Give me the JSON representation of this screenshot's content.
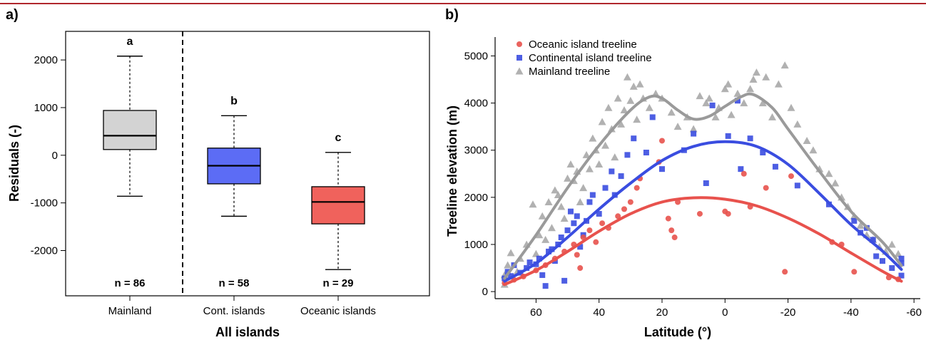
{
  "header": {
    "rule_color": "#b0272d"
  },
  "chart_data": [
    {
      "panel": "a)",
      "type": "box",
      "title": "",
      "xlabel": "All islands",
      "ylabel": "Residuals (-)",
      "ylim": [
        -2950,
        2600
      ],
      "yticks": [
        2000,
        1000,
        0,
        -1000,
        -2000
      ],
      "ytick_labels": [
        "2000",
        "1000",
        "0",
        "-1000",
        "-2000"
      ],
      "separator": "dashed vertical line between Mainland and islands",
      "categories": [
        "Mainland",
        "Cont. islands",
        "Oceanic islands"
      ],
      "boxes": [
        {
          "category": "Mainland",
          "whisker_low": -860,
          "q1": 120,
          "median": 410,
          "q3": 940,
          "whisker_high": 2080,
          "color": "#d3d3d3",
          "letter": "a",
          "n_label": "n = 86"
        },
        {
          "category": "Cont. islands",
          "whisker_low": -1280,
          "q1": -600,
          "median": -220,
          "q3": 150,
          "whisker_high": 830,
          "color": "#5c6cf5",
          "letter": "b",
          "n_label": "n = 58"
        },
        {
          "category": "Oceanic islands",
          "whisker_low": -2400,
          "q1": -1440,
          "median": -980,
          "q3": -660,
          "whisker_high": 60,
          "color": "#f0625c",
          "letter": "c",
          "n_label": "n = 29"
        }
      ]
    },
    {
      "panel": "b)",
      "type": "scatter",
      "title": "",
      "xlabel": "Latitude (°)",
      "ylabel": "Treeline elevation (m)",
      "xlim": [
        73,
        -62
      ],
      "ylim": [
        -150,
        5400
      ],
      "xticks": [
        60,
        40,
        20,
        0,
        -20,
        -40,
        -60
      ],
      "xtick_labels": [
        "60",
        "40",
        "20",
        "0",
        "-20",
        "-40",
        "-60"
      ],
      "yticks": [
        0,
        1000,
        2000,
        3000,
        4000,
        5000
      ],
      "ytick_labels": [
        "0",
        "1000",
        "2000",
        "3000",
        "4000",
        "5000"
      ],
      "legend_position": "top-left",
      "grid": false,
      "series": [
        {
          "name": "Oceanic island treeline",
          "marker": "circle",
          "color": "#e8524d",
          "points": [
            [
              70,
              180
            ],
            [
              67,
              250
            ],
            [
              64,
              320
            ],
            [
              60,
              450
            ],
            [
              57,
              560
            ],
            [
              54,
              700
            ],
            [
              51,
              850
            ],
            [
              48,
              1000
            ],
            [
              47,
              780
            ],
            [
              46,
              500
            ],
            [
              45,
              1150
            ],
            [
              43,
              1300
            ],
            [
              41,
              1050
            ],
            [
              39,
              1450
            ],
            [
              37,
              1350
            ],
            [
              34,
              1600
            ],
            [
              32,
              1750
            ],
            [
              30,
              1900
            ],
            [
              28,
              2200
            ],
            [
              27,
              2400
            ],
            [
              21,
              2750
            ],
            [
              20,
              3200
            ],
            [
              18,
              1550
            ],
            [
              17,
              1300
            ],
            [
              16,
              1150
            ],
            [
              15,
              1900
            ],
            [
              8,
              1650
            ],
            [
              0,
              1700
            ],
            [
              -1,
              1650
            ],
            [
              -6,
              2500
            ],
            [
              -8,
              1800
            ],
            [
              -13,
              2200
            ],
            [
              -19,
              420
            ],
            [
              -21,
              2450
            ],
            [
              -34,
              1050
            ],
            [
              -37,
              1000
            ],
            [
              -41,
              420
            ],
            [
              -52,
              300
            ],
            [
              -55,
              260
            ]
          ]
        },
        {
          "name": "Continental island treeline",
          "marker": "square",
          "color": "#3a4de0",
          "points": [
            [
              70,
              280
            ],
            [
              69,
              420
            ],
            [
              68,
              330
            ],
            [
              67,
              560
            ],
            [
              65,
              400
            ],
            [
              63,
              500
            ],
            [
              62,
              620
            ],
            [
              60,
              580
            ],
            [
              59,
              700
            ],
            [
              58,
              350
            ],
            [
              57,
              120
            ],
            [
              56,
              850
            ],
            [
              55,
              900
            ],
            [
              54,
              650
            ],
            [
              53,
              1000
            ],
            [
              52,
              1150
            ],
            [
              51,
              230
            ],
            [
              50,
              1300
            ],
            [
              49,
              1700
            ],
            [
              48,
              1450
            ],
            [
              47,
              1600
            ],
            [
              46,
              950
            ],
            [
              45,
              1200
            ],
            [
              44,
              1500
            ],
            [
              43,
              1900
            ],
            [
              42,
              2050
            ],
            [
              40,
              1650
            ],
            [
              38,
              2200
            ],
            [
              36,
              2550
            ],
            [
              35,
              2050
            ],
            [
              33,
              2450
            ],
            [
              31,
              2900
            ],
            [
              29,
              3250
            ],
            [
              25,
              2950
            ],
            [
              23,
              3700
            ],
            [
              20,
              2600
            ],
            [
              13,
              3000
            ],
            [
              10,
              3350
            ],
            [
              6,
              2300
            ],
            [
              4,
              3950
            ],
            [
              -1,
              3300
            ],
            [
              -4,
              4050
            ],
            [
              -5,
              2600
            ],
            [
              -8,
              3250
            ],
            [
              -12,
              2950
            ],
            [
              -16,
              2650
            ],
            [
              -23,
              2250
            ],
            [
              -33,
              1850
            ],
            [
              -41,
              1500
            ],
            [
              -43,
              1250
            ],
            [
              -45,
              1350
            ],
            [
              -47,
              1100
            ],
            [
              -48,
              750
            ],
            [
              -50,
              650
            ],
            [
              -53,
              500
            ],
            [
              -56,
              340
            ],
            [
              -56,
              600
            ],
            [
              -56,
              700
            ]
          ]
        },
        {
          "name": "Mainland treeline",
          "marker": "triangle",
          "color": "#a8a8a8",
          "points": [
            [
              70,
              150
            ],
            [
              70,
              350
            ],
            [
              69,
              560
            ],
            [
              68,
              820
            ],
            [
              66,
              420
            ],
            [
              65,
              700
            ],
            [
              63,
              1000
            ],
            [
              61,
              1850
            ],
            [
              60,
              800
            ],
            [
              59,
              1200
            ],
            [
              58,
              1600
            ],
            [
              57,
              1100
            ],
            [
              56,
              1900
            ],
            [
              55,
              1350
            ],
            [
              54,
              2150
            ],
            [
              53,
              2050
            ],
            [
              52,
              1800
            ],
            [
              51,
              1550
            ],
            [
              50,
              2400
            ],
            [
              49,
              2700
            ],
            [
              48,
              2350
            ],
            [
              47,
              2550
            ],
            [
              46,
              1900
            ],
            [
              45,
              2200
            ],
            [
              44,
              2900
            ],
            [
              43,
              2600
            ],
            [
              42,
              3250
            ],
            [
              41,
              3000
            ],
            [
              40,
              2700
            ],
            [
              39,
              3600
            ],
            [
              38,
              3100
            ],
            [
              37,
              3900
            ],
            [
              36,
              3450
            ],
            [
              35,
              2850
            ],
            [
              34,
              4100
            ],
            [
              33,
              3550
            ],
            [
              32,
              3850
            ],
            [
              31,
              4550
            ],
            [
              30,
              4050
            ],
            [
              29,
              4350
            ],
            [
              28,
              3650
            ],
            [
              27,
              4400
            ],
            [
              26,
              4100
            ],
            [
              24,
              3900
            ],
            [
              22,
              4200
            ],
            [
              20,
              4100
            ],
            [
              17,
              3800
            ],
            [
              15,
              3500
            ],
            [
              12,
              3700
            ],
            [
              10,
              3450
            ],
            [
              8,
              4150
            ],
            [
              6,
              4000
            ],
            [
              5,
              4100
            ],
            [
              3,
              3700
            ],
            [
              2,
              3900
            ],
            [
              0,
              4300
            ],
            [
              -1,
              4400
            ],
            [
              -2,
              3750
            ],
            [
              -4,
              4200
            ],
            [
              -6,
              4000
            ],
            [
              -8,
              4300
            ],
            [
              -9,
              4500
            ],
            [
              -10,
              4650
            ],
            [
              -12,
              4000
            ],
            [
              -13,
              4550
            ],
            [
              -15,
              3700
            ],
            [
              -17,
              4400
            ],
            [
              -19,
              4800
            ],
            [
              -21,
              3900
            ],
            [
              -23,
              3550
            ],
            [
              -26,
              3200
            ],
            [
              -28,
              3000
            ],
            [
              -30,
              2600
            ],
            [
              -33,
              2500
            ],
            [
              -35,
              2300
            ],
            [
              -37,
              2000
            ],
            [
              -39,
              1800
            ],
            [
              -41,
              1600
            ],
            [
              -43,
              1400
            ],
            [
              -45,
              1200
            ],
            [
              -47,
              1100
            ],
            [
              -49,
              950
            ],
            [
              -51,
              850
            ],
            [
              -53,
              1000
            ],
            [
              -55,
              800
            ]
          ]
        }
      ],
      "smooth_fits": [
        {
          "name": "Oceanic island treeline",
          "color": "#e8524d",
          "x": [
            70,
            60,
            50,
            40,
            30,
            20,
            10,
            0,
            -10,
            -20,
            -30,
            -40,
            -50,
            -56
          ],
          "y": [
            150,
            450,
            850,
            1280,
            1650,
            1900,
            1990,
            1960,
            1820,
            1560,
            1220,
            820,
            430,
            220
          ]
        },
        {
          "name": "Continental island treeline",
          "color": "#3a4de0",
          "x": [
            70,
            60,
            50,
            40,
            30,
            20,
            10,
            0,
            -10,
            -20,
            -30,
            -40,
            -50,
            -56
          ],
          "y": [
            220,
            600,
            1150,
            1750,
            2300,
            2780,
            3080,
            3180,
            3080,
            2700,
            2080,
            1420,
            860,
            470
          ]
        },
        {
          "name": "Mainland treeline",
          "color": "#9a9a9a",
          "x": [
            70,
            60,
            50,
            40,
            30,
            24,
            20,
            15,
            10,
            5,
            0,
            -5,
            -9,
            -15,
            -20,
            -30,
            -40,
            -50,
            -56
          ],
          "y": [
            280,
            1200,
            2200,
            3100,
            3850,
            4130,
            4100,
            3850,
            3660,
            3720,
            3930,
            4130,
            4180,
            3900,
            3450,
            2550,
            1700,
            1050,
            550
          ]
        }
      ]
    }
  ]
}
